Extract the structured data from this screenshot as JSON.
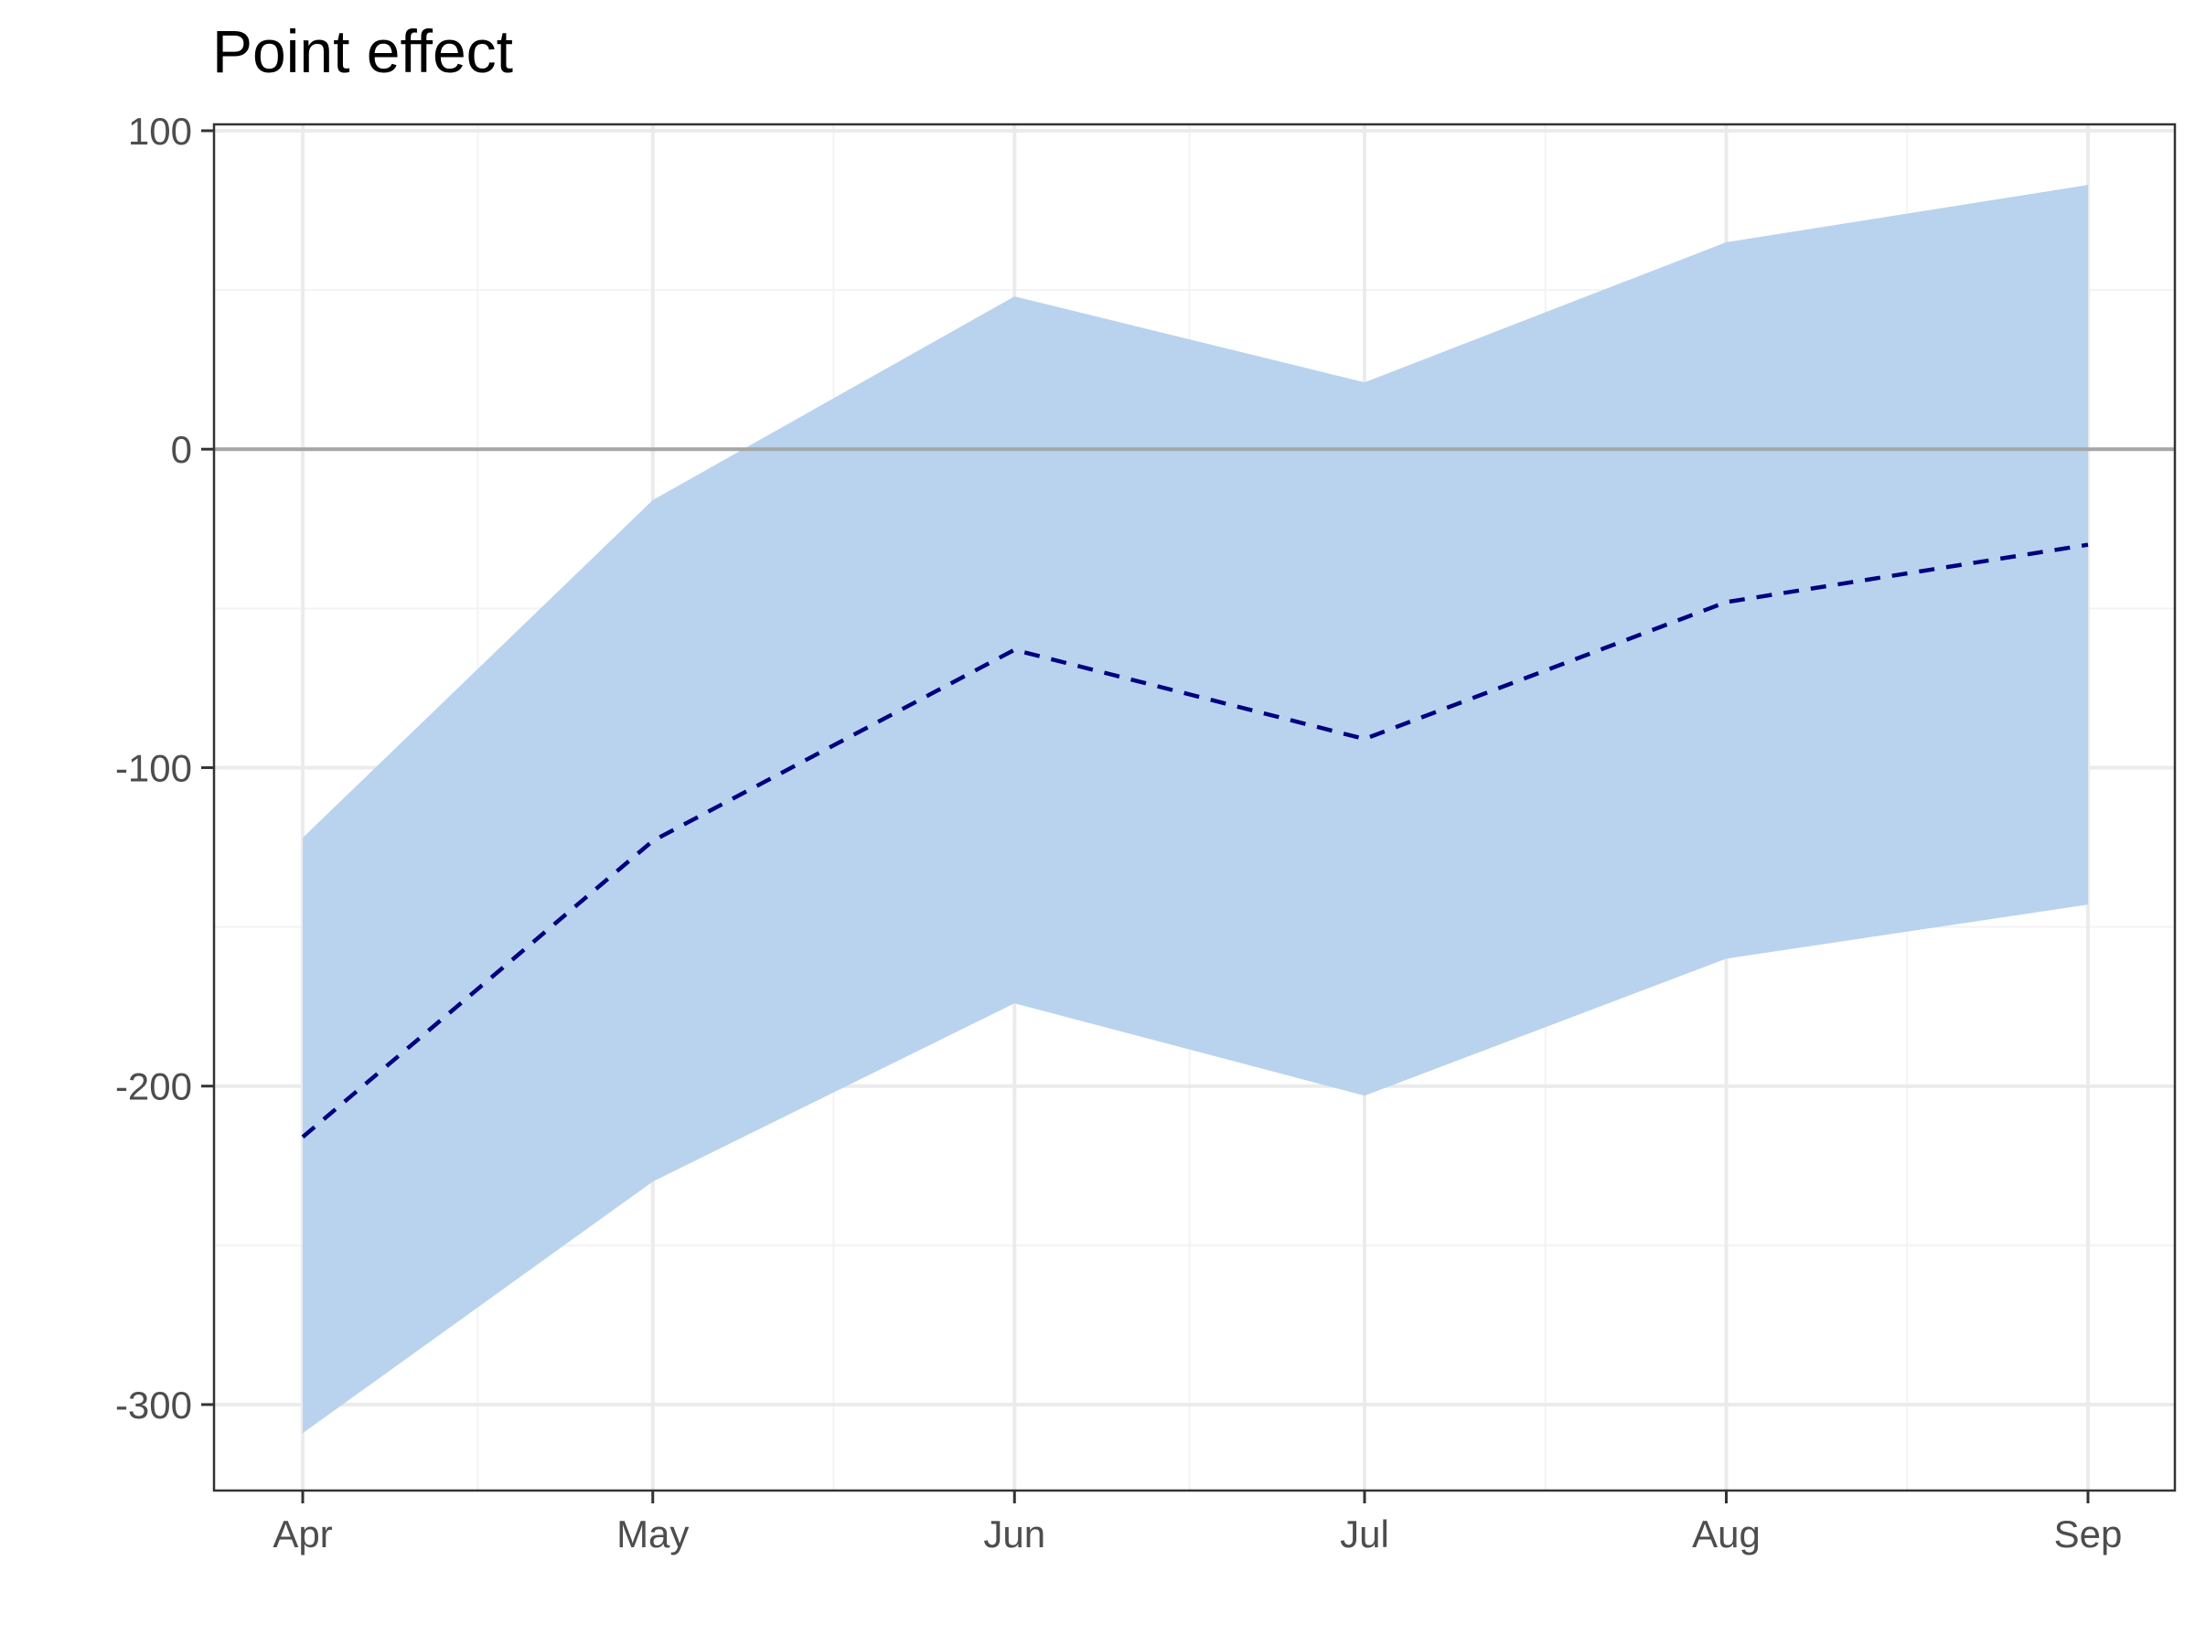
{
  "chart_data": {
    "type": "area",
    "title": "Point effect",
    "xlabel": "",
    "ylabel": "",
    "categories": [
      "Apr",
      "May",
      "Jun",
      "Jul",
      "Aug",
      "Sep"
    ],
    "x_dates": [
      "2020-04-01",
      "2020-05-01",
      "2020-06-01",
      "2020-07-01",
      "2020-08-01",
      "2020-09-01"
    ],
    "series": [
      {
        "name": "",
        "kind": "line",
        "style": "dashed",
        "values": [
          -216,
          -123,
          -63,
          -91,
          -48,
          -30
        ]
      },
      {
        "name": "",
        "kind": "band",
        "lower": [
          -309,
          -230,
          -174,
          -203,
          -160,
          -143
        ],
        "upper": [
          -122,
          -16,
          48,
          21,
          65,
          83
        ]
      }
    ],
    "reference_line": 0,
    "yticks": [
      100,
      0,
      -100,
      -200,
      -300
    ],
    "ylim": [
      -327,
      102
    ],
    "grid": true,
    "legend": "none"
  },
  "colors": {
    "band": "#b9d3ee",
    "line": "#000080",
    "zero_line": "#a6a6a6",
    "grid_major": "#ebebeb",
    "grid_minor": "#f3f3f3",
    "panel_border": "#333333"
  }
}
